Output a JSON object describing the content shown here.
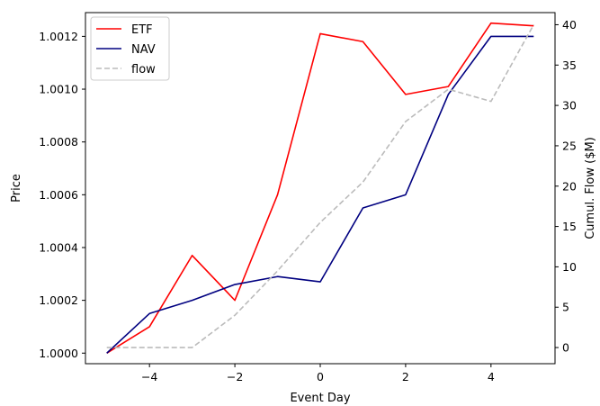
{
  "chart_data": {
    "type": "line",
    "title": "",
    "xlabel": "Event Day",
    "ylabel": "Price",
    "y2label": "Cumul. Flow ($M)",
    "x": [
      -5,
      -4,
      -3,
      -2,
      -1,
      0,
      1,
      2,
      3,
      4,
      5
    ],
    "xlim": [
      -5.5,
      5.5
    ],
    "ylim": [
      0.99996,
      1.00129
    ],
    "y2lim": [
      -2,
      41.5
    ],
    "xticks": [
      -4,
      -2,
      0,
      2,
      4
    ],
    "yticks": [
      1.0,
      1.0002,
      1.0004,
      1.0006,
      1.0008,
      1.001,
      1.0012
    ],
    "ytick_labels": [
      "1.0000",
      "1.0002",
      "1.0004",
      "1.0006",
      "1.0008",
      "1.0010",
      "1.0012"
    ],
    "y2ticks": [
      0,
      5,
      10,
      15,
      20,
      25,
      30,
      35,
      40
    ],
    "grid": false,
    "legend_position": "top-left",
    "series": [
      {
        "name": "ETF",
        "axis": "left",
        "color": "#ff0000",
        "style": "solid",
        "values": [
          1.0,
          1.0001,
          1.00037,
          1.0002,
          1.0006,
          1.00121,
          1.00118,
          1.00098,
          1.00101,
          1.00125,
          1.00124
        ]
      },
      {
        "name": "NAV",
        "axis": "left",
        "color": "#000080",
        "style": "solid",
        "values": [
          1.0,
          1.00015,
          1.0002,
          1.00026,
          1.00029,
          1.00027,
          1.00055,
          1.0006,
          1.00098,
          1.0012,
          1.0012
        ]
      },
      {
        "name": "flow",
        "axis": "right",
        "color": "#bbbbbb",
        "style": "dashed",
        "values": [
          0,
          0,
          0,
          4,
          9.5,
          15.5,
          20.5,
          28,
          32,
          30.5,
          40
        ]
      }
    ]
  }
}
